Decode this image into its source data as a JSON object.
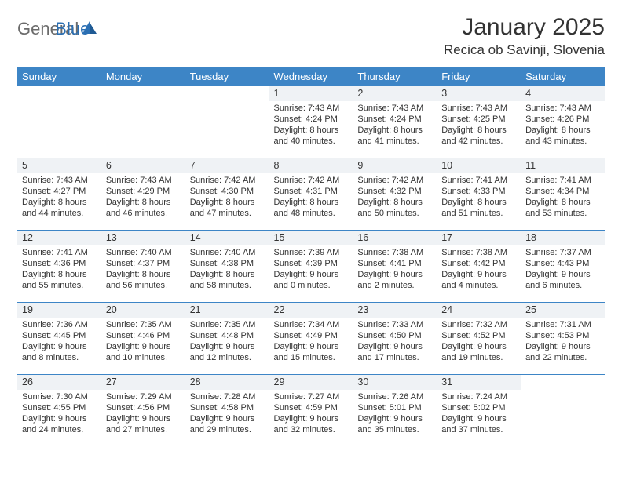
{
  "colors": {
    "header_bg": "#3d85c6",
    "header_text": "#ffffff",
    "daynum_bg": "#eff2f5",
    "cell_border": "#3d85c6",
    "body_text": "#333333",
    "logo_gray": "#6b6b6b",
    "logo_blue": "#2b6fb3",
    "page_bg": "#ffffff"
  },
  "logo": {
    "part1": "General",
    "part2": "Blue"
  },
  "title": "January 2025",
  "location": "Recica ob Savinji, Slovenia",
  "weekdays": [
    "Sunday",
    "Monday",
    "Tuesday",
    "Wednesday",
    "Thursday",
    "Friday",
    "Saturday"
  ],
  "first_weekday_index": 3,
  "days": [
    {
      "n": 1,
      "sunrise": "7:43 AM",
      "sunset": "4:24 PM",
      "dl_h": 8,
      "dl_m": 40
    },
    {
      "n": 2,
      "sunrise": "7:43 AM",
      "sunset": "4:24 PM",
      "dl_h": 8,
      "dl_m": 41
    },
    {
      "n": 3,
      "sunrise": "7:43 AM",
      "sunset": "4:25 PM",
      "dl_h": 8,
      "dl_m": 42
    },
    {
      "n": 4,
      "sunrise": "7:43 AM",
      "sunset": "4:26 PM",
      "dl_h": 8,
      "dl_m": 43
    },
    {
      "n": 5,
      "sunrise": "7:43 AM",
      "sunset": "4:27 PM",
      "dl_h": 8,
      "dl_m": 44
    },
    {
      "n": 6,
      "sunrise": "7:43 AM",
      "sunset": "4:29 PM",
      "dl_h": 8,
      "dl_m": 46
    },
    {
      "n": 7,
      "sunrise": "7:42 AM",
      "sunset": "4:30 PM",
      "dl_h": 8,
      "dl_m": 47
    },
    {
      "n": 8,
      "sunrise": "7:42 AM",
      "sunset": "4:31 PM",
      "dl_h": 8,
      "dl_m": 48
    },
    {
      "n": 9,
      "sunrise": "7:42 AM",
      "sunset": "4:32 PM",
      "dl_h": 8,
      "dl_m": 50
    },
    {
      "n": 10,
      "sunrise": "7:41 AM",
      "sunset": "4:33 PM",
      "dl_h": 8,
      "dl_m": 51
    },
    {
      "n": 11,
      "sunrise": "7:41 AM",
      "sunset": "4:34 PM",
      "dl_h": 8,
      "dl_m": 53
    },
    {
      "n": 12,
      "sunrise": "7:41 AM",
      "sunset": "4:36 PM",
      "dl_h": 8,
      "dl_m": 55
    },
    {
      "n": 13,
      "sunrise": "7:40 AM",
      "sunset": "4:37 PM",
      "dl_h": 8,
      "dl_m": 56
    },
    {
      "n": 14,
      "sunrise": "7:40 AM",
      "sunset": "4:38 PM",
      "dl_h": 8,
      "dl_m": 58
    },
    {
      "n": 15,
      "sunrise": "7:39 AM",
      "sunset": "4:39 PM",
      "dl_h": 9,
      "dl_m": 0
    },
    {
      "n": 16,
      "sunrise": "7:38 AM",
      "sunset": "4:41 PM",
      "dl_h": 9,
      "dl_m": 2
    },
    {
      "n": 17,
      "sunrise": "7:38 AM",
      "sunset": "4:42 PM",
      "dl_h": 9,
      "dl_m": 4
    },
    {
      "n": 18,
      "sunrise": "7:37 AM",
      "sunset": "4:43 PM",
      "dl_h": 9,
      "dl_m": 6
    },
    {
      "n": 19,
      "sunrise": "7:36 AM",
      "sunset": "4:45 PM",
      "dl_h": 9,
      "dl_m": 8
    },
    {
      "n": 20,
      "sunrise": "7:35 AM",
      "sunset": "4:46 PM",
      "dl_h": 9,
      "dl_m": 10
    },
    {
      "n": 21,
      "sunrise": "7:35 AM",
      "sunset": "4:48 PM",
      "dl_h": 9,
      "dl_m": 12
    },
    {
      "n": 22,
      "sunrise": "7:34 AM",
      "sunset": "4:49 PM",
      "dl_h": 9,
      "dl_m": 15
    },
    {
      "n": 23,
      "sunrise": "7:33 AM",
      "sunset": "4:50 PM",
      "dl_h": 9,
      "dl_m": 17
    },
    {
      "n": 24,
      "sunrise": "7:32 AM",
      "sunset": "4:52 PM",
      "dl_h": 9,
      "dl_m": 19
    },
    {
      "n": 25,
      "sunrise": "7:31 AM",
      "sunset": "4:53 PM",
      "dl_h": 9,
      "dl_m": 22
    },
    {
      "n": 26,
      "sunrise": "7:30 AM",
      "sunset": "4:55 PM",
      "dl_h": 9,
      "dl_m": 24
    },
    {
      "n": 27,
      "sunrise": "7:29 AM",
      "sunset": "4:56 PM",
      "dl_h": 9,
      "dl_m": 27
    },
    {
      "n": 28,
      "sunrise": "7:28 AM",
      "sunset": "4:58 PM",
      "dl_h": 9,
      "dl_m": 29
    },
    {
      "n": 29,
      "sunrise": "7:27 AM",
      "sunset": "4:59 PM",
      "dl_h": 9,
      "dl_m": 32
    },
    {
      "n": 30,
      "sunrise": "7:26 AM",
      "sunset": "5:01 PM",
      "dl_h": 9,
      "dl_m": 35
    },
    {
      "n": 31,
      "sunrise": "7:24 AM",
      "sunset": "5:02 PM",
      "dl_h": 9,
      "dl_m": 37
    }
  ],
  "labels": {
    "sunrise_prefix": "Sunrise: ",
    "sunset_prefix": "Sunset: ",
    "daylight_prefix": "Daylight: ",
    "hours_word": " hours",
    "and_word": "and ",
    "minutes_word": " minutes."
  }
}
